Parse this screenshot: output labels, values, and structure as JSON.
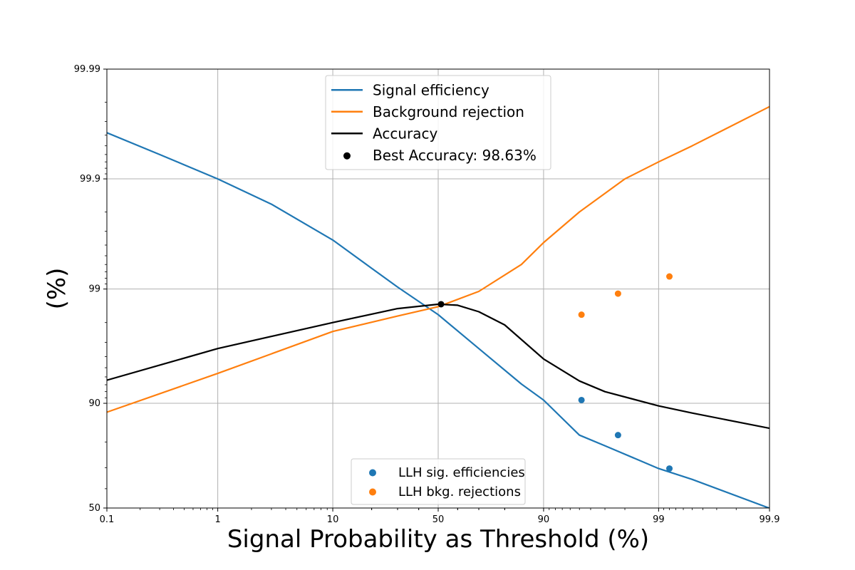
{
  "chart_data": {
    "type": "line",
    "title": "",
    "xlabel": "Signal Probability as Threshold (%)",
    "ylabel": "(%)",
    "x_scale": "logit",
    "y_scale": "logit",
    "xlim": [
      0.1,
      99.9
    ],
    "ylim": [
      50,
      99.99
    ],
    "x_ticks": [
      "0.1",
      "1",
      "10",
      "50",
      "90",
      "99",
      "99.9"
    ],
    "y_ticks": [
      "50",
      "90",
      "99",
      "99.9",
      "99.99"
    ],
    "grid": true,
    "colors": {
      "signal": "#1f77b4",
      "background": "#ff7f0e",
      "accuracy": "#000000",
      "best": "#000000"
    },
    "series": [
      {
        "name": "Signal efficiency",
        "color": "#1f77b4",
        "x": [
          0.1,
          0.3,
          1,
          3,
          10,
          20,
          30,
          50,
          70,
          85,
          90,
          95,
          97,
          99,
          99.5,
          99.9
        ],
        "values": [
          99.962,
          99.94,
          99.9,
          99.83,
          99.64,
          99.35,
          99.04,
          98.3,
          96.6,
          93.1,
          90.6,
          82.2,
          78.7,
          69.6,
          64.6,
          49.9
        ]
      },
      {
        "name": "Background rejection",
        "color": "#ff7f0e",
        "x": [
          0.1,
          1,
          10,
          30,
          50,
          70,
          85,
          90,
          95,
          98,
          99,
          99.5,
          99.9
        ],
        "values": [
          88.2,
          94.4,
          97.6,
          98.25,
          98.56,
          98.95,
          99.4,
          99.62,
          99.8,
          99.9,
          99.93,
          99.95,
          99.978
        ]
      },
      {
        "name": "Accuracy",
        "color": "#000000",
        "x": [
          0.1,
          1,
          10,
          30,
          50,
          60,
          70,
          80,
          90,
          95,
          97,
          99,
          99.5,
          99.9
        ],
        "values": [
          93.6,
          96.6,
          98.0,
          98.5,
          98.63,
          98.6,
          98.4,
          97.9,
          95.8,
          93.5,
          92.0,
          89.5,
          88.0,
          84.2
        ]
      }
    ],
    "points": [
      {
        "name": "Best Accuracy: 98.63%",
        "color": "#000000",
        "x": [
          51.5
        ],
        "y": [
          98.63
        ]
      },
      {
        "name": "LLH sig. efficiencies",
        "color": "#1f77b4",
        "x": [
          95.2,
          97.7,
          99.2
        ],
        "y": [
          90.6,
          82.2,
          69.6
        ]
      },
      {
        "name": "LLH bkg. rejections",
        "color": "#ff7f0e",
        "x": [
          95.2,
          97.7,
          99.2
        ],
        "y": [
          98.3,
          98.9,
          99.23
        ]
      }
    ],
    "legends": [
      {
        "position": "upper-center",
        "entries": [
          "Signal efficiency",
          "Background rejection",
          "Accuracy",
          "Best Accuracy: 98.63%"
        ]
      },
      {
        "position": "lower-center",
        "entries": [
          "LLH sig. efficiencies",
          "LLH bkg. rejections"
        ]
      }
    ]
  }
}
